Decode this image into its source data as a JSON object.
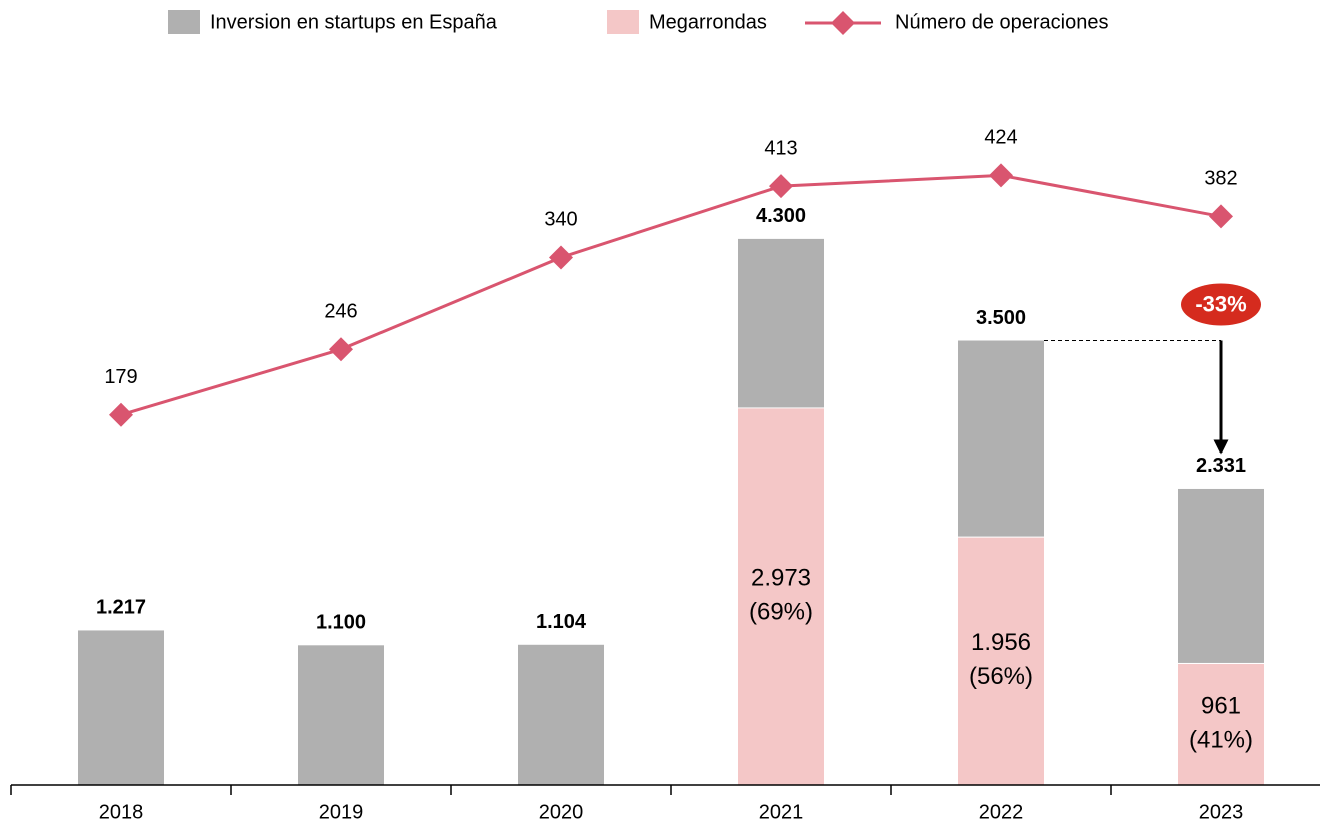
{
  "chart_data": {
    "type": "bar",
    "categories": [
      "2018",
      "2019",
      "2020",
      "2021",
      "2022",
      "2023"
    ],
    "series": [
      {
        "name": "Inversion en startups en España",
        "color": "#b0b0b0",
        "values": [
          1217,
          1100,
          1104,
          1327,
          1544,
          1370
        ]
      },
      {
        "name": "Megarrondas",
        "color": "#f4c7c7",
        "values": [
          null,
          null,
          null,
          2973,
          1956,
          961
        ],
        "value_labels": [
          null,
          null,
          null,
          "2.973",
          "1.956",
          "961"
        ],
        "share_labels": [
          null,
          null,
          null,
          "(69%)",
          "(56%)",
          "(41%)"
        ]
      },
      {
        "name": "Número de operaciones",
        "type": "line",
        "axis": "y2",
        "color": "#d9556f",
        "values": [
          179,
          246,
          340,
          413,
          424,
          382
        ]
      }
    ],
    "totals": [
      1217,
      1100,
      1104,
      4300,
      3500,
      2331
    ],
    "total_labels": [
      "1.217",
      "1.100",
      "1.104",
      "4.300",
      "3.500",
      "2.331"
    ],
    "annotation": "-33%",
    "ylim": [
      0,
      6000
    ],
    "y2lim": [
      -200,
      580
    ],
    "legend": "top"
  }
}
